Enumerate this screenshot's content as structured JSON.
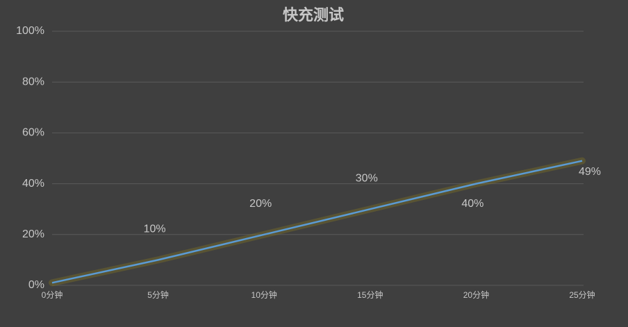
{
  "chart_data": {
    "type": "line",
    "title": "快充测试",
    "categories": [
      "0分钟",
      "5分钟",
      "10分钟",
      "15分钟",
      "20分钟",
      "25分钟"
    ],
    "series": [
      {
        "color": "#5b9bd5",
        "values": [
          1,
          10,
          20,
          30,
          40,
          49
        ],
        "value_labels": [
          null,
          "10%",
          "20%",
          "30%",
          "40%",
          "49%"
        ]
      }
    ],
    "ylim": [
      0,
      100
    ],
    "yticks": [
      {
        "value": 0,
        "label": "0%"
      },
      {
        "value": 20,
        "label": "20%"
      },
      {
        "value": 40,
        "label": "40%"
      },
      {
        "value": 60,
        "label": "60%"
      },
      {
        "value": 80,
        "label": "80%"
      },
      {
        "value": 100,
        "label": "100%"
      }
    ],
    "grid": true
  }
}
